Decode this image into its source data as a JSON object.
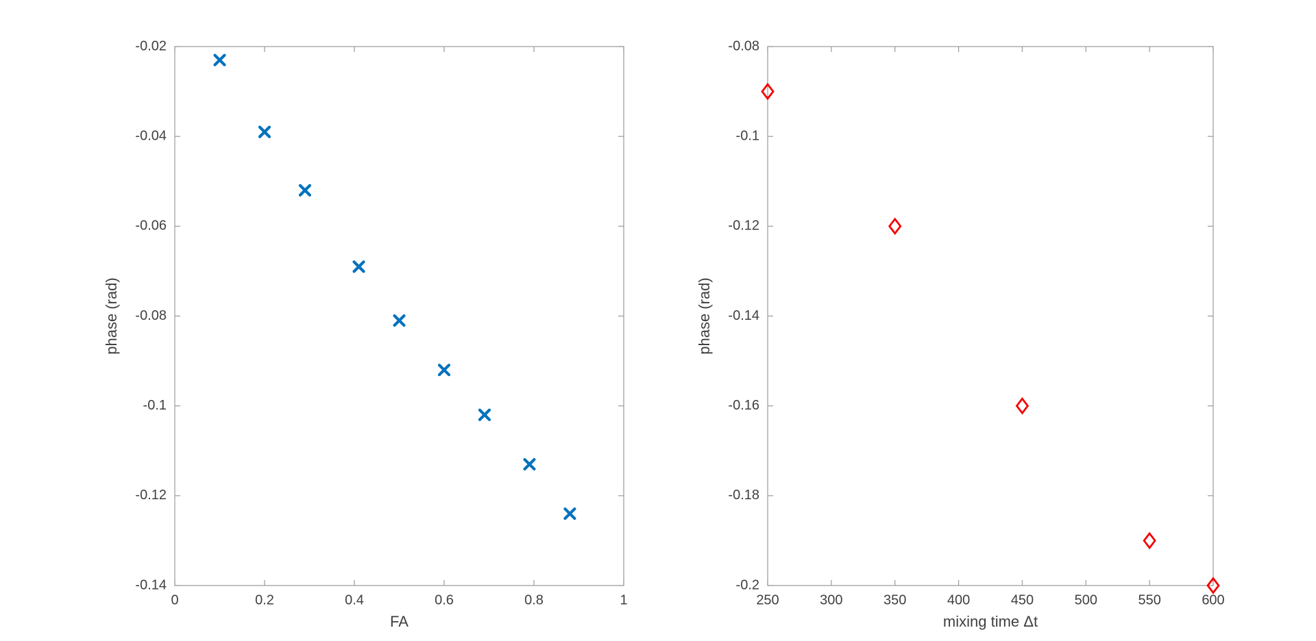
{
  "window": {
    "title": "",
    "background": "#ffffff"
  },
  "style": {
    "axis_color": "#999999",
    "text_color": "#404040",
    "tick_len": 8,
    "tick_font": 20,
    "label_font": 22
  },
  "chart_data": [
    {
      "type": "scatter",
      "title": "",
      "xlabel": "FA",
      "ylabel": "phase (rad)",
      "marker": "x",
      "color": "#0072BD",
      "xlim": [
        0,
        1
      ],
      "ylim": [
        -0.14,
        -0.02
      ],
      "xticks": [
        0,
        0.2,
        0.4,
        0.6,
        0.8,
        1
      ],
      "yticks": [
        -0.14,
        -0.12,
        -0.1,
        -0.08,
        -0.06,
        -0.04,
        -0.02
      ],
      "grid": false,
      "legend": null,
      "x": [
        0.1,
        0.2,
        0.29,
        0.41,
        0.5,
        0.6,
        0.69,
        0.79,
        0.88
      ],
      "y": [
        -0.023,
        -0.039,
        -0.052,
        -0.069,
        -0.081,
        -0.092,
        -0.102,
        -0.113,
        -0.124
      ]
    },
    {
      "type": "scatter",
      "title": "",
      "xlabel": "mixing time Δt",
      "ylabel": "phase (rad)",
      "marker": "diamond",
      "color": "#F50000",
      "xlim": [
        250,
        600
      ],
      "ylim": [
        -0.2,
        -0.08
      ],
      "xticks": [
        250,
        300,
        350,
        400,
        450,
        500,
        550,
        600
      ],
      "yticks": [
        -0.2,
        -0.18,
        -0.16,
        -0.14,
        -0.12,
        -0.1,
        -0.08
      ],
      "grid": false,
      "legend": null,
      "x": [
        250,
        350,
        450,
        550,
        600
      ],
      "y": [
        -0.09,
        -0.12,
        -0.16,
        -0.19,
        -0.2
      ]
    }
  ]
}
